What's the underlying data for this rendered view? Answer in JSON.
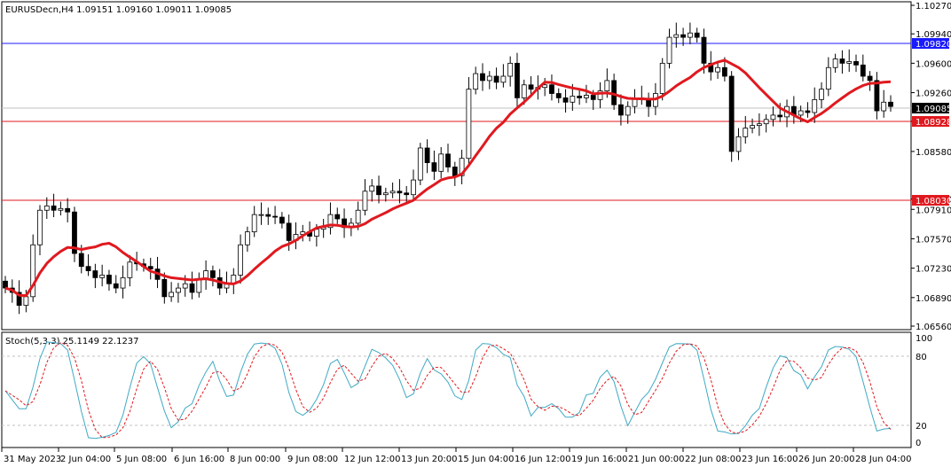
{
  "header": {
    "symbol_line": "EURUSDecn,H4  1.09151 1.09160 1.09011 1.09085"
  },
  "stoch_header": {
    "label": "Stoch(5,3,3) 25.1149 22.1237"
  },
  "colors": {
    "bull_body": "#ffffff",
    "bear_body": "#000000",
    "ma_line": "#e0191f",
    "stoch_main": "#3fa9c4",
    "stoch_signal": "#e0191f",
    "resistance_line": "#1a1aff",
    "support_line": "#e0191f",
    "current_price_line": "#c0c0c0"
  },
  "price_axis": {
    "labels": [
      "1.10270",
      "1.09940",
      "1.09600",
      "1.09260",
      "1.08928",
      "1.08580",
      "1.08030",
      "1.07910",
      "1.07570",
      "1.07230",
      "1.06890",
      "1.06560"
    ]
  },
  "price_tags": {
    "resistance": "1.09820",
    "current": "1.09085",
    "support_upper": "1.08928",
    "support_lower": "1.08030"
  },
  "stoch_axis": {
    "labels": [
      "100",
      "80",
      "20",
      "0"
    ]
  },
  "time_axis": {
    "labels": [
      "31 May 2023",
      "2 Jun 04:00",
      "5 Jun 08:00",
      "6 Jun 16:00",
      "8 Jun 00:00",
      "9 Jun 08:00",
      "12 Jun 12:00",
      "13 Jun 20:00",
      "15 Jun 04:00",
      "16 Jun 12:00",
      "19 Jun 16:00",
      "21 Jun 00:00",
      "22 Jun 08:00",
      "23 Jun 16:00",
      "26 Jun 20:00",
      "28 Jun 04:00"
    ]
  },
  "chart_data": {
    "type": "candlestick",
    "symbol": "EURUSDecn",
    "timeframe": "H4",
    "ylim": [
      1.0656,
      1.1027
    ],
    "horizontal_levels": [
      1.0982,
      1.08928,
      1.0803
    ],
    "current_price": 1.09085,
    "candles_close": [
      1.07,
      1.0695,
      1.068,
      1.069,
      1.075,
      1.079,
      1.0795,
      1.079,
      1.0792,
      1.0788,
      1.074,
      1.0725,
      1.072,
      1.0712,
      1.0715,
      1.0705,
      1.07,
      1.0712,
      1.073,
      1.0728,
      1.0725,
      1.0722,
      1.071,
      1.069,
      1.0695,
      1.07,
      1.0705,
      1.0695,
      1.071,
      1.072,
      1.0712,
      1.07,
      1.0705,
      1.0715,
      1.075,
      1.0765,
      1.0785,
      1.0785,
      1.0783,
      1.0782,
      1.0775,
      1.0755,
      1.0762,
      1.0765,
      1.076,
      1.0768,
      1.077,
      1.0785,
      1.078,
      1.077,
      1.0775,
      1.079,
      1.0812,
      1.0818,
      1.0808,
      1.081,
      1.0812,
      1.081,
      1.0808,
      1.0825,
      1.0862,
      1.0845,
      1.0835,
      1.0855,
      1.084,
      1.083,
      1.085,
      1.093,
      1.0948,
      1.094,
      1.0945,
      1.0938,
      1.0945,
      1.096,
      1.092,
      1.0935,
      1.093,
      1.0932,
      1.0935,
      1.0925,
      1.092,
      1.0915,
      1.0922,
      1.092,
      1.0923,
      1.0918,
      1.0928,
      1.094,
      1.0912,
      1.09,
      1.091,
      1.092,
      1.0918,
      1.091,
      1.0925,
      1.096,
      1.099,
      1.0993,
      1.099,
      1.0995,
      1.099,
      1.096,
      1.095,
      1.0955,
      1.0945,
      1.0858,
      1.0875,
      1.0885,
      1.0888,
      1.089,
      1.0895,
      1.09,
      1.0898,
      1.091,
      1.09,
      1.0905,
      1.0903,
      1.0918,
      1.093,
      1.0955,
      1.0965,
      1.096,
      1.0962,
      1.0958,
      1.0945,
      1.094,
      1.0905,
      1.0915,
      1.091
    ],
    "ma_period": "not shown",
    "stochastic": {
      "params": "5,3,3",
      "main": 25.1149,
      "signal": 22.1237,
      "levels": [
        20,
        80
      ],
      "range": [
        0,
        100
      ]
    }
  }
}
